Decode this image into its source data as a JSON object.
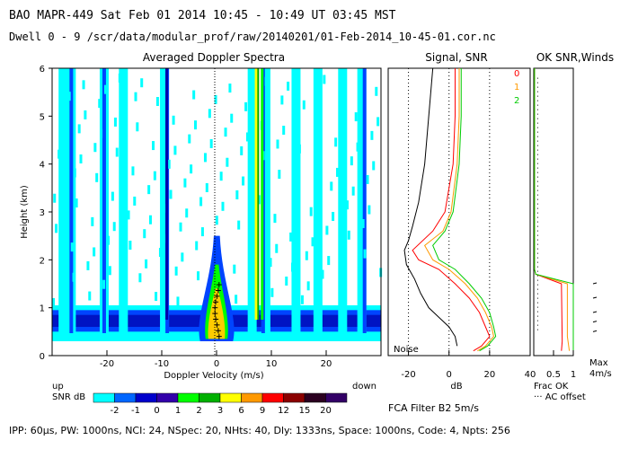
{
  "header": {
    "line1": "BAO  MAPR-449  Sat Feb 01 2014 10:45 - 10:49 UT 03:45 MST",
    "line2": "Dwell  0 - 9   /scr/data/modular_prof/raw/20140201/01-Feb-2014_10-45-01.cor.nc"
  },
  "footer": {
    "params": "IPP: 60µs, PW: 1000ns, NCI: 24, NSpec: 20, NHts: 40, Dly: 1333ns, Space: 1000ns, Code: 4, Npts: 256",
    "filter": "FCA Filter B2  5m/s"
  },
  "colorbar": {
    "label": "SNR dB",
    "up": "up",
    "down": "down",
    "ticks": [
      "-2",
      "-1",
      "0",
      "1",
      "2",
      "3",
      "6",
      "9",
      "12",
      "15",
      "20"
    ],
    "colors": [
      "#00ffff",
      "#0066ff",
      "#0000cc",
      "#3300aa",
      "#00ff00",
      "#00b000",
      "#ffff00",
      "#ff9900",
      "#ff0000",
      "#8b0000",
      "#2b0020",
      "#330066"
    ]
  },
  "chart_data": [
    {
      "type": "heatmap",
      "title": "Averaged Doppler Spectra",
      "xlabel": "Doppler Velocity (m/s)",
      "ylabel": "Height (km)",
      "xlim": [
        -30,
        30
      ],
      "ylim": [
        0,
        6
      ],
      "xticks": [
        "-20",
        "-10",
        "0",
        "10",
        "20"
      ],
      "yticks": [
        "0",
        "1",
        "2",
        "3",
        "4",
        "5",
        "6"
      ]
    },
    {
      "type": "line",
      "title": "Signal, SNR",
      "xlabel": "dB",
      "xlim": [
        -30,
        40
      ],
      "ylim": [
        0,
        6
      ],
      "xticks": [
        "-20",
        "0",
        "20",
        "40"
      ],
      "annotation": "Noise",
      "legend": [
        {
          "name": "0",
          "color": "#ff0000"
        },
        {
          "name": "1",
          "color": "#ff9900"
        },
        {
          "name": "2",
          "color": "#00cc00"
        }
      ],
      "series": [
        {
          "name": "Noise",
          "color": "#000000",
          "x": [
            -8,
            -10,
            -12,
            -15,
            -18,
            -20,
            -22,
            -21,
            -17,
            -14,
            -10,
            -5,
            0,
            3,
            4
          ],
          "y": [
            6,
            5,
            4,
            3.2,
            2.7,
            2.4,
            2.2,
            1.9,
            1.6,
            1.3,
            1.0,
            0.8,
            0.6,
            0.4,
            0.2
          ]
        },
        {
          "name": "0",
          "color": "#ff0000",
          "x": [
            3,
            3,
            2,
            -2,
            -8,
            -18,
            -15,
            -5,
            3,
            10,
            15,
            18,
            20,
            16,
            12
          ],
          "y": [
            6,
            5,
            4,
            3.0,
            2.6,
            2.2,
            2.0,
            1.8,
            1.5,
            1.2,
            0.9,
            0.6,
            0.4,
            0.2,
            0.1
          ]
        },
        {
          "name": "1",
          "color": "#ff9900",
          "x": [
            5,
            5,
            4,
            1,
            -3,
            -12,
            -8,
            0,
            8,
            14,
            18,
            21,
            22,
            18,
            14
          ],
          "y": [
            6,
            5,
            4,
            3.0,
            2.6,
            2.3,
            2.0,
            1.8,
            1.5,
            1.2,
            0.9,
            0.6,
            0.4,
            0.2,
            0.1
          ]
        },
        {
          "name": "2",
          "color": "#00cc00",
          "x": [
            6,
            6,
            5,
            2,
            -2,
            -8,
            -5,
            3,
            10,
            16,
            20,
            22,
            23,
            19,
            15
          ],
          "y": [
            6,
            5,
            4,
            3.0,
            2.6,
            2.3,
            2.0,
            1.8,
            1.5,
            1.2,
            0.9,
            0.6,
            0.4,
            0.2,
            0.1
          ]
        }
      ]
    },
    {
      "type": "line",
      "title": "OK SNR,Winds",
      "xlabel": "Frac OK",
      "xticks": [
        "0.5",
        "1"
      ],
      "xlim": [
        0,
        1
      ],
      "ylim": [
        0,
        6
      ],
      "annotation_ac": "··· AC offset",
      "wind_max_label": "Max",
      "wind_speed_label": "4m/s",
      "series": [
        {
          "name": "0",
          "color": "#ff0000",
          "x": [
            0.02,
            0.02,
            0.05,
            0.7,
            0.72,
            0.7
          ],
          "y": [
            6,
            1.8,
            1.7,
            1.5,
            0.3,
            0.1
          ]
        },
        {
          "name": "1",
          "color": "#ff9900",
          "x": [
            0.02,
            0.02,
            0.05,
            0.85,
            0.85,
            0.9
          ],
          "y": [
            6,
            1.8,
            1.7,
            1.5,
            0.4,
            0.1
          ]
        },
        {
          "name": "2",
          "color": "#00cc00",
          "x": [
            0.02,
            0.02,
            0.05,
            1.0,
            1.0,
            1.0
          ],
          "y": [
            6,
            1.8,
            1.7,
            1.5,
            0.3,
            0.1
          ]
        },
        {
          "name": "ac",
          "color": "#000000",
          "x": [
            0.1,
            0.1,
            0.1,
            0.1,
            0.1,
            0.1
          ],
          "y": [
            5.8,
            4.5,
            3.5,
            2.5,
            1.5,
            0.5
          ]
        }
      ]
    }
  ]
}
